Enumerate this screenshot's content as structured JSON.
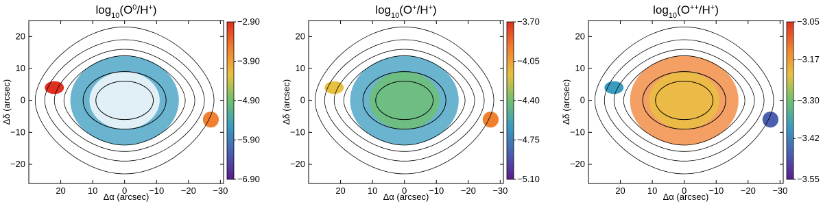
{
  "chart_data": [
    {
      "type": "image",
      "title": [
        "log",
        "10",
        "(O",
        "0",
        "/H",
        "+",
        ")"
      ],
      "xlabel": "Δα (arcsec)",
      "ylabel": "Δδ (arcsec)",
      "xlim": [
        30,
        -31
      ],
      "ylim": [
        -26,
        25
      ],
      "xticks": [
        20,
        10,
        0,
        {
          "value": -10,
          "label": "−10"
        },
        {
          "value": -20,
          "label": "−20"
        },
        {
          "value": -30,
          "label": "−30"
        }
      ],
      "yticks": [
        {
          "value": -20,
          "label": "−20"
        },
        {
          "value": -10,
          "label": "−10"
        },
        0,
        10,
        20
      ],
      "clim": [
        -6.9,
        -2.9
      ],
      "cticks": [
        {
          "value": -2.9,
          "label": "−2.90"
        },
        {
          "value": -3.9,
          "label": "−3.90"
        },
        {
          "value": -4.9,
          "label": "−4.90"
        },
        {
          "value": -5.9,
          "label": "−5.90"
        },
        {
          "value": -6.9,
          "label": "−6.90"
        }
      ],
      "colormap": [
        "#5a1c8c",
        "#4a5fb0",
        "#3a9bbf",
        "#6fbf6f",
        "#e8c040",
        "#f08030",
        "#e03020"
      ]
    },
    {
      "type": "image",
      "title": [
        "log",
        "10",
        "(O",
        "+",
        "/H",
        "+",
        ")"
      ],
      "xlabel": "Δα (arcsec)",
      "ylabel": "Δδ (arcsec)",
      "xlim": [
        30,
        -31
      ],
      "ylim": [
        -26,
        25
      ],
      "xticks": [
        20,
        10,
        0,
        {
          "value": -10,
          "label": "−10"
        },
        {
          "value": -20,
          "label": "−20"
        },
        {
          "value": -30,
          "label": "−30"
        }
      ],
      "yticks": [
        {
          "value": -20,
          "label": "−20"
        },
        {
          "value": -10,
          "label": "−10"
        },
        0,
        10,
        20
      ],
      "clim": [
        -5.1,
        -3.7
      ],
      "cticks": [
        {
          "value": -3.7,
          "label": "−3.70"
        },
        {
          "value": -4.05,
          "label": "−4.05"
        },
        {
          "value": -4.4,
          "label": "−4.40"
        },
        {
          "value": -4.75,
          "label": "−4.75"
        },
        {
          "value": -5.1,
          "label": "−5.10"
        }
      ],
      "colormap": [
        "#5a1c8c",
        "#4a5fb0",
        "#3a9bbf",
        "#6fbf6f",
        "#e8c040",
        "#f08030",
        "#e03020"
      ]
    },
    {
      "type": "image",
      "title": [
        "log",
        "10",
        "(O",
        "++",
        "/H",
        "+",
        ")"
      ],
      "xlabel": "Δα (arcsec)",
      "ylabel": "Δδ (arcsec)",
      "xlim": [
        30,
        -31
      ],
      "ylim": [
        -26,
        25
      ],
      "xticks": [
        20,
        10,
        0,
        {
          "value": -10,
          "label": "−10"
        },
        {
          "value": -20,
          "label": "−20"
        },
        {
          "value": -30,
          "label": "−30"
        }
      ],
      "yticks": [
        {
          "value": -20,
          "label": "−20"
        },
        {
          "value": -10,
          "label": "−10"
        },
        0,
        10,
        20
      ],
      "clim": [
        -3.55,
        -3.05
      ],
      "cticks": [
        {
          "value": -3.05,
          "label": "−3.05"
        },
        {
          "value": -3.17,
          "label": "−3.17"
        },
        {
          "value": -3.3,
          "label": "−3.30"
        },
        {
          "value": -3.42,
          "label": "−3.42"
        },
        {
          "value": -3.55,
          "label": "−3.55"
        }
      ],
      "colormap": [
        "#5a1c8c",
        "#4a5fb0",
        "#3a9bbf",
        "#6fbf6f",
        "#e8c040",
        "#f08030",
        "#e03020"
      ]
    }
  ]
}
